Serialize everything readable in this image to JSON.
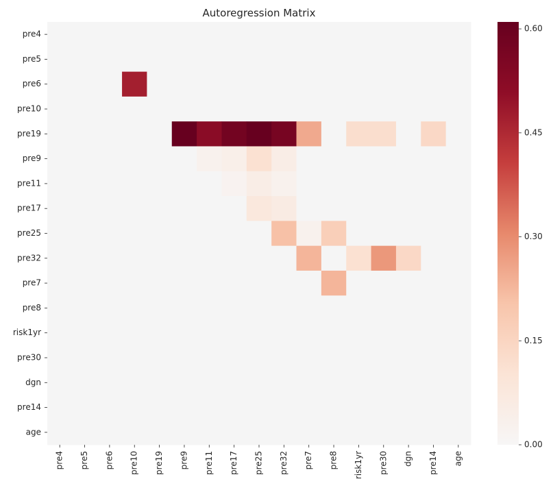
{
  "chart_data": {
    "type": "heatmap",
    "title": "Autoregression Matrix",
    "xlabel": "",
    "ylabel": "",
    "rows": [
      "pre4",
      "pre5",
      "pre6",
      "pre10",
      "pre19",
      "pre9",
      "pre11",
      "pre17",
      "pre25",
      "pre32",
      "pre7",
      "pre8",
      "risk1yr",
      "pre30",
      "dgn",
      "pre14",
      "age"
    ],
    "columns": [
      "pre4",
      "pre5",
      "pre6",
      "pre10",
      "pre19",
      "pre9",
      "pre11",
      "pre17",
      "pre25",
      "pre32",
      "pre7",
      "pre8",
      "risk1yr",
      "pre30",
      "dgn",
      "pre14",
      "age"
    ],
    "values": [
      [
        0,
        0,
        0,
        0,
        0,
        0,
        0,
        0,
        0,
        0,
        0,
        0,
        0,
        0,
        0,
        0,
        0
      ],
      [
        0,
        0,
        0,
        0,
        0,
        0,
        0,
        0,
        0,
        0,
        0,
        0,
        0,
        0,
        0,
        0,
        0
      ],
      [
        0,
        0,
        0,
        0.47,
        0,
        0,
        0,
        0,
        0,
        0,
        0,
        0,
        0,
        0,
        0,
        0,
        0
      ],
      [
        0,
        0,
        0,
        0,
        0,
        0,
        0,
        0,
        0,
        0,
        0,
        0,
        0,
        0,
        0,
        0,
        0
      ],
      [
        0,
        0,
        0,
        0,
        0,
        0.61,
        0.52,
        0.58,
        0.61,
        0.57,
        0.25,
        0,
        0.12,
        0.12,
        0,
        0.14,
        0
      ],
      [
        0,
        0,
        0,
        0,
        0,
        0,
        0.03,
        0.04,
        0.11,
        0.05,
        0,
        0,
        0,
        0,
        0,
        0,
        0
      ],
      [
        0,
        0,
        0,
        0,
        0,
        0,
        0,
        0.02,
        0.05,
        0.03,
        0,
        0,
        0,
        0,
        0,
        0,
        0
      ],
      [
        0,
        0,
        0,
        0,
        0,
        0,
        0,
        0,
        0.08,
        0.06,
        0,
        0,
        0,
        0,
        0,
        0,
        0
      ],
      [
        0,
        0,
        0,
        0,
        0,
        0,
        0,
        0,
        0,
        0.21,
        0.03,
        0.17,
        0,
        0,
        0,
        0,
        0
      ],
      [
        0,
        0,
        0,
        0,
        0,
        0,
        0,
        0,
        0,
        0,
        0.23,
        0,
        0.11,
        0.28,
        0.14,
        0,
        0
      ],
      [
        0,
        0,
        0,
        0,
        0,
        0,
        0,
        0,
        0,
        0,
        0,
        0.23,
        0,
        0,
        0,
        0,
        0
      ],
      [
        0,
        0,
        0,
        0,
        0,
        0,
        0,
        0,
        0,
        0,
        0,
        0,
        0,
        0,
        0,
        0,
        0
      ],
      [
        0,
        0,
        0,
        0,
        0,
        0,
        0,
        0,
        0,
        0,
        0,
        0,
        0,
        0,
        0,
        0,
        0
      ],
      [
        0,
        0,
        0,
        0,
        0,
        0,
        0,
        0,
        0,
        0,
        0,
        0,
        0,
        0,
        0,
        0,
        0
      ],
      [
        0,
        0,
        0,
        0,
        0,
        0,
        0,
        0,
        0,
        0,
        0,
        0,
        0,
        0,
        0,
        0,
        0
      ],
      [
        0,
        0,
        0,
        0,
        0,
        0,
        0,
        0,
        0,
        0,
        0,
        0,
        0,
        0,
        0,
        0,
        0
      ],
      [
        0,
        0,
        0,
        0,
        0,
        0,
        0,
        0,
        0,
        0,
        0,
        0,
        0,
        0,
        0,
        0,
        0
      ]
    ],
    "colorbar": {
      "range": [
        0,
        0.61
      ],
      "ticks": [
        0.0,
        0.15,
        0.3,
        0.45,
        0.6
      ],
      "tick_labels": [
        "0.00",
        "0.15",
        "0.30",
        "0.45",
        "0.60"
      ],
      "colormap": "RdBu_r (positive half)"
    },
    "colors": {
      "zero": "#f5f5f5",
      "stops": [
        "#f7f6f6",
        "#fbe4d6",
        "#f8c5ab",
        "#e7896c",
        "#c53e3d",
        "#8f0d27",
        "#67001f"
      ]
    }
  }
}
